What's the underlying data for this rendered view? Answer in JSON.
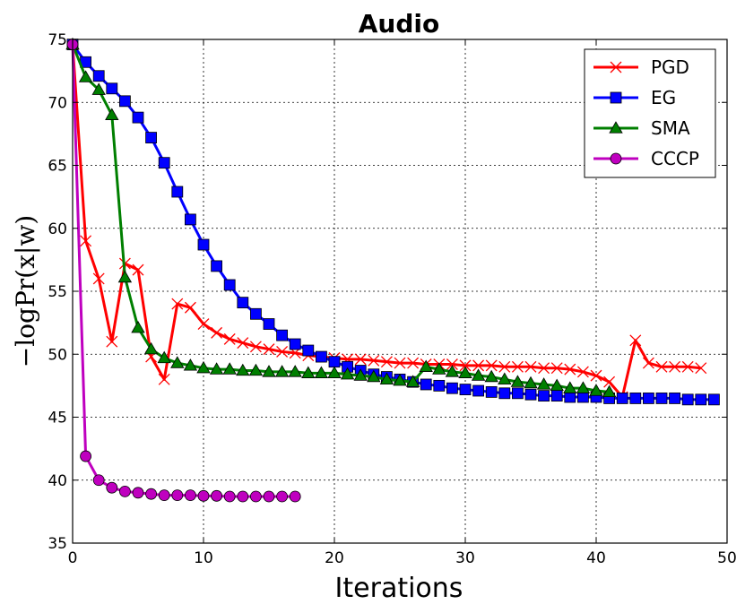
{
  "chart_data": {
    "type": "line",
    "title": "Audio",
    "xlabel": "Iterations",
    "ylabel": "−logPr(x|w)",
    "xlim": [
      0,
      50
    ],
    "ylim": [
      35,
      75
    ],
    "xticks": [
      0,
      10,
      20,
      30,
      40,
      50
    ],
    "yticks": [
      35,
      40,
      45,
      50,
      55,
      60,
      65,
      70,
      75
    ],
    "grid": true,
    "legend_position": "top-right",
    "series": [
      {
        "name": "PGD",
        "color": "#ff0000",
        "marker": "x",
        "x": [
          0,
          1,
          2,
          3,
          4,
          5,
          6,
          7,
          8,
          9,
          10,
          11,
          12,
          13,
          14,
          15,
          16,
          17,
          18,
          19,
          20,
          21,
          22,
          23,
          24,
          25,
          26,
          27,
          28,
          29,
          30,
          31,
          32,
          33,
          34,
          35,
          36,
          37,
          38,
          39,
          40,
          41,
          42,
          43,
          44,
          45,
          46,
          47,
          48
        ],
        "y": [
          74.6,
          59.0,
          56.0,
          51.0,
          57.2,
          56.7,
          49.8,
          48.0,
          54.0,
          53.7,
          52.4,
          51.7,
          51.2,
          50.9,
          50.6,
          50.4,
          50.2,
          50.1,
          49.9,
          49.8,
          49.7,
          49.6,
          49.6,
          49.5,
          49.4,
          49.3,
          49.3,
          49.2,
          49.2,
          49.2,
          49.1,
          49.1,
          49.1,
          49.0,
          49.0,
          49.0,
          48.9,
          48.9,
          48.8,
          48.6,
          48.3,
          47.8,
          46.6,
          51.1,
          49.3,
          49.0,
          49.0,
          49.0,
          48.9
        ]
      },
      {
        "name": "EG",
        "color": "#0000ff",
        "marker": "s",
        "x": [
          0,
          1,
          2,
          3,
          4,
          5,
          6,
          7,
          8,
          9,
          10,
          11,
          12,
          13,
          14,
          15,
          16,
          17,
          18,
          19,
          20,
          21,
          22,
          23,
          24,
          25,
          26,
          27,
          28,
          29,
          30,
          31,
          32,
          33,
          34,
          35,
          36,
          37,
          38,
          39,
          40,
          41,
          42,
          43,
          44,
          45,
          46,
          47,
          48,
          49
        ],
        "y": [
          74.6,
          73.2,
          72.1,
          71.1,
          70.1,
          68.8,
          67.2,
          65.2,
          62.9,
          60.7,
          58.7,
          57.0,
          55.5,
          54.1,
          53.2,
          52.4,
          51.5,
          50.8,
          50.3,
          49.8,
          49.4,
          49.0,
          48.7,
          48.4,
          48.2,
          48.0,
          47.8,
          47.6,
          47.5,
          47.3,
          47.2,
          47.1,
          47.0,
          46.9,
          46.9,
          46.8,
          46.7,
          46.7,
          46.6,
          46.6,
          46.6,
          46.5,
          46.5,
          46.5,
          46.5,
          46.5,
          46.5,
          46.4,
          46.4,
          46.4
        ]
      },
      {
        "name": "SMA",
        "color": "#007f00",
        "marker": "^",
        "x": [
          0,
          1,
          2,
          3,
          4,
          5,
          6,
          7,
          8,
          9,
          10,
          11,
          12,
          13,
          14,
          15,
          16,
          17,
          18,
          19,
          20,
          21,
          22,
          23,
          24,
          25,
          26,
          27,
          28,
          29,
          30,
          31,
          32,
          33,
          34,
          35,
          36,
          37,
          38,
          39,
          40,
          41
        ],
        "y": [
          74.6,
          72.0,
          71.0,
          69.0,
          56.1,
          52.1,
          50.4,
          49.7,
          49.3,
          49.1,
          48.9,
          48.8,
          48.8,
          48.7,
          48.7,
          48.6,
          48.6,
          48.6,
          48.5,
          48.5,
          48.5,
          48.4,
          48.3,
          48.2,
          48.0,
          47.9,
          47.8,
          49.0,
          48.8,
          48.6,
          48.5,
          48.3,
          48.2,
          48.0,
          47.8,
          47.7,
          47.6,
          47.5,
          47.3,
          47.3,
          47.1,
          47.0
        ]
      },
      {
        "name": "CCCP",
        "color": "#bf00bf",
        "marker": "o",
        "x": [
          0,
          1,
          2,
          3,
          4,
          5,
          6,
          7,
          8,
          9,
          10,
          11,
          12,
          13,
          14,
          15,
          16,
          17
        ],
        "y": [
          74.6,
          41.9,
          40.0,
          39.4,
          39.1,
          39.0,
          38.9,
          38.8,
          38.8,
          38.8,
          38.75,
          38.75,
          38.7,
          38.7,
          38.7,
          38.7,
          38.7,
          38.7
        ]
      }
    ]
  }
}
